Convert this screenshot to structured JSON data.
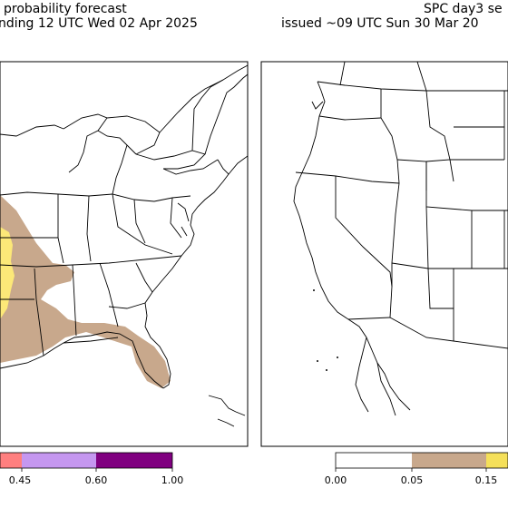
{
  "left_panel": {
    "title_line1": "probability forecast",
    "title_line2": "nding 12 UTC Wed 02 Apr 2025",
    "colorbar": {
      "tick_labels": [
        "0.45",
        "0.60",
        "1.00"
      ],
      "colors": [
        "#ff7f7f",
        "#c597f0",
        "#800080"
      ]
    },
    "shading_colors": {
      "low": "#c8a88c",
      "mid": "#fce878"
    }
  },
  "right_panel": {
    "title_line1": "SPC day3 se",
    "title_line2": "issued ~09 UTC Sun 30 Mar 20",
    "colorbar": {
      "tick_labels": [
        "0.00",
        "0.05",
        "0.15"
      ],
      "colors": [
        "#ffffff",
        "#c8a88c",
        "#f5e05a"
      ]
    }
  }
}
